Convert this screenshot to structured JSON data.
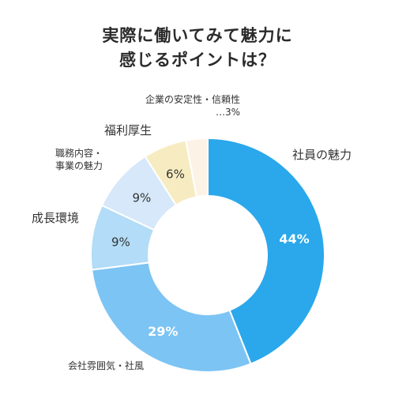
{
  "chart_data": {
    "type": "pie",
    "style": "donut",
    "title_lines": [
      "実際に働いてみて魅力に",
      "感じるポイントは？"
    ],
    "slices": [
      {
        "label_lines": [
          "社員の魅力"
        ],
        "value": 44,
        "value_label": "44%",
        "color": "#2aa8eb"
      },
      {
        "label_lines": [
          "会社雰囲気・社風"
        ],
        "value": 29,
        "value_label": "29%",
        "color": "#7cc4f4"
      },
      {
        "label_lines": [
          "成長環境"
        ],
        "value": 9,
        "value_label": "9%",
        "color": "#b2dcf7"
      },
      {
        "label_lines": [
          "職務内容・",
          "事業の魅力"
        ],
        "value": 9,
        "value_label": "9%",
        "color": "#d6e8fa"
      },
      {
        "label_lines": [
          "福利厚生"
        ],
        "value": 6,
        "value_label": "6%",
        "color": "#f7ecc1"
      },
      {
        "label_lines": [
          "企業の安定性・信頼性",
          "…3%"
        ],
        "value": 3,
        "value_label": "",
        "color": "#fdf2e6"
      }
    ],
    "value_label_colors": [
      "#ffffff",
      "#ffffff",
      "#333333",
      "#333333",
      "#333333"
    ]
  }
}
